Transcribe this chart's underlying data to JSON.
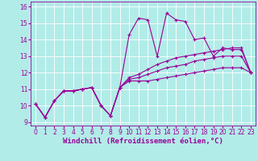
{
  "bg_color": "#b2ece8",
  "line_color": "#990099",
  "grid_color": "#ffffff",
  "xlabel": "Windchill (Refroidissement éolien,°C)",
  "xlim": [
    -0.5,
    23.5
  ],
  "ylim": [
    8.8,
    16.3
  ],
  "xticks": [
    0,
    1,
    2,
    3,
    4,
    5,
    6,
    7,
    8,
    9,
    10,
    11,
    12,
    13,
    14,
    15,
    16,
    17,
    18,
    19,
    20,
    21,
    22,
    23
  ],
  "yticks": [
    9,
    10,
    11,
    12,
    13,
    14,
    15,
    16
  ],
  "series1_x": [
    0,
    1,
    2,
    3,
    4,
    5,
    6,
    7,
    8,
    9,
    10,
    11,
    12,
    13,
    14,
    15,
    16,
    17,
    18,
    19,
    20,
    21,
    22,
    23
  ],
  "series1_y": [
    10.1,
    9.3,
    10.3,
    10.9,
    10.9,
    11.0,
    11.1,
    10.0,
    9.4,
    11.1,
    14.3,
    15.3,
    15.2,
    13.0,
    15.6,
    15.2,
    15.1,
    14.0,
    14.1,
    13.0,
    13.5,
    13.4,
    13.4,
    12.0
  ],
  "series2_x": [
    0,
    1,
    2,
    3,
    4,
    5,
    6,
    7,
    8,
    9,
    10,
    11,
    12,
    13,
    14,
    15,
    16,
    17,
    18,
    19,
    20,
    21,
    22,
    23
  ],
  "series2_y": [
    10.1,
    9.3,
    10.3,
    10.9,
    10.9,
    11.0,
    11.1,
    10.0,
    9.4,
    11.1,
    11.5,
    11.5,
    11.5,
    11.6,
    11.7,
    11.8,
    11.9,
    12.0,
    12.1,
    12.2,
    12.3,
    12.3,
    12.3,
    12.0
  ],
  "series3_x": [
    0,
    1,
    2,
    3,
    4,
    5,
    6,
    7,
    8,
    9,
    10,
    11,
    12,
    13,
    14,
    15,
    16,
    17,
    18,
    19,
    20,
    21,
    22,
    23
  ],
  "series3_y": [
    10.1,
    9.3,
    10.3,
    10.9,
    10.9,
    11.0,
    11.1,
    10.0,
    9.4,
    11.1,
    11.6,
    11.7,
    11.9,
    12.1,
    12.3,
    12.4,
    12.5,
    12.7,
    12.8,
    12.9,
    13.0,
    13.0,
    13.0,
    12.0
  ],
  "series4_x": [
    0,
    1,
    2,
    3,
    4,
    5,
    6,
    7,
    8,
    9,
    10,
    11,
    12,
    13,
    14,
    15,
    16,
    17,
    18,
    19,
    20,
    21,
    22,
    23
  ],
  "series4_y": [
    10.1,
    9.3,
    10.3,
    10.9,
    10.9,
    11.0,
    11.1,
    10.0,
    9.4,
    11.1,
    11.7,
    11.9,
    12.2,
    12.5,
    12.7,
    12.9,
    13.0,
    13.1,
    13.2,
    13.3,
    13.4,
    13.5,
    13.5,
    12.0
  ],
  "marker": "+",
  "markersize": 3.5,
  "linewidth": 0.8,
  "xlabel_fontsize": 6.5,
  "tick_fontsize": 5.5
}
